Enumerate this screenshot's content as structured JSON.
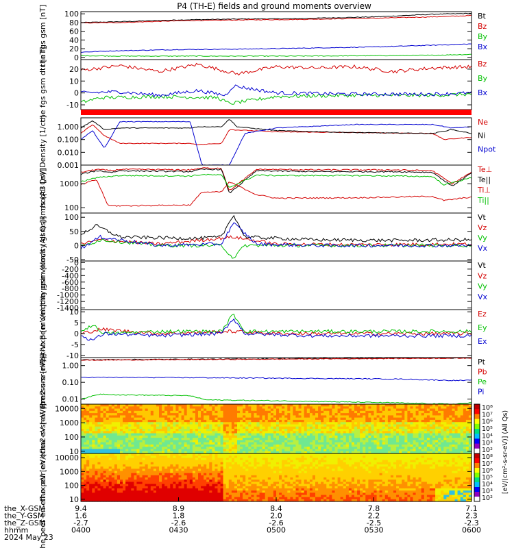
{
  "title": "P4 (TH-E) fields and ground moments overview",
  "chart_data": [
    {
      "type": "line",
      "ylabel": "the fgs gsm [nT]",
      "ylim": [
        -5,
        105
      ],
      "yticks": [
        "0",
        "20",
        "40",
        "60",
        "80",
        "100"
      ],
      "legend": [
        {
          "name": "Bt",
          "color": "#000000"
        },
        {
          "name": "Bz",
          "color": "#d40000"
        },
        {
          "name": "By",
          "color": "#00c000"
        },
        {
          "name": "Bx",
          "color": "#0000d0"
        }
      ],
      "series": [
        {
          "name": "Bt",
          "x": [
            0,
            0.1,
            0.25,
            0.4,
            0.55,
            0.75,
            0.9,
            1
          ],
          "values": [
            80,
            82,
            86,
            88,
            89,
            93,
            99,
            101
          ]
        },
        {
          "name": "Bz",
          "x": [
            0,
            0.1,
            0.25,
            0.4,
            0.55,
            0.75,
            0.9,
            1
          ],
          "values": [
            79,
            80,
            84,
            86,
            87,
            90,
            93,
            96
          ]
        },
        {
          "name": "By",
          "x": [
            0,
            0.1,
            0.25,
            0.4,
            0.55,
            0.75,
            0.9,
            1
          ],
          "values": [
            4,
            3,
            3,
            3,
            3,
            4,
            5,
            7
          ]
        },
        {
          "name": "Bx",
          "x": [
            0,
            0.08,
            0.25,
            0.4,
            0.55,
            0.75,
            0.9,
            1
          ],
          "values": [
            12,
            15,
            18,
            19,
            21,
            24,
            28,
            31
          ]
        }
      ]
    },
    {
      "type": "line",
      "ylabel": "the fgs gsm dtr [nT]",
      "ylim": [
        -14,
        28
      ],
      "yticks": [
        "-10",
        "0",
        "10",
        "20"
      ],
      "legend": [
        {
          "name": "Bz",
          "color": "#d40000"
        },
        {
          "name": "By",
          "color": "#00c000"
        },
        {
          "name": "Bx",
          "color": "#0000d0"
        }
      ],
      "series": [
        {
          "name": "Bz",
          "x": [
            0,
            0.1,
            0.2,
            0.3,
            0.4,
            0.5,
            0.6,
            0.7,
            0.8,
            0.9,
            1
          ],
          "values": [
            19,
            23,
            18,
            24,
            16,
            22,
            21,
            22,
            18,
            21,
            22
          ]
        },
        {
          "name": "By",
          "x": [
            0,
            0.05,
            0.2,
            0.35,
            0.38,
            0.5,
            0.7,
            0.9,
            1
          ],
          "values": [
            -8,
            -4,
            -3,
            -4,
            -9,
            -3,
            -2,
            -2,
            -1
          ]
        },
        {
          "name": "Bx",
          "x": [
            0,
            0.1,
            0.2,
            0.3,
            0.37,
            0.39,
            0.5,
            0.7,
            0.9,
            1
          ],
          "values": [
            0,
            1,
            -2,
            2,
            -2,
            6,
            0,
            -1,
            -1,
            0
          ]
        }
      ]
    },
    {
      "type": "line",
      "ylabel": "Density [1/cc]",
      "yscale": "log",
      "ylim": [
        0.001,
        5
      ],
      "yticks": [
        "0.001",
        "0.010",
        "0.100",
        "1.000"
      ],
      "legend": [
        {
          "name": "Ne",
          "color": "#d40000"
        },
        {
          "name": "Ni",
          "color": "#000000"
        },
        {
          "name": "Npot",
          "color": "#0000d0"
        }
      ],
      "series": [
        {
          "name": "Ne",
          "x": [
            0,
            0.03,
            0.06,
            0.1,
            0.28,
            0.3,
            0.36,
            0.38,
            0.5,
            0.7,
            0.9,
            0.93,
            1
          ],
          "values": [
            0.3,
            1.5,
            0.2,
            0.05,
            0.05,
            0.04,
            0.05,
            0.6,
            0.4,
            0.35,
            0.3,
            0.1,
            0.15
          ]
        },
        {
          "name": "Ni",
          "x": [
            0,
            0.03,
            0.06,
            0.1,
            0.28,
            0.3,
            0.36,
            0.38,
            0.4,
            0.5,
            0.7,
            0.9,
            0.95,
            1
          ],
          "values": [
            0.8,
            3,
            0.6,
            0.8,
            0.8,
            1,
            1,
            4,
            1,
            0.5,
            0.35,
            0.3,
            0.6,
            0.3
          ]
        },
        {
          "name": "Npot",
          "x": [
            0,
            0.03,
            0.06,
            0.1,
            0.28,
            0.31,
            0.38,
            0.42,
            0.5,
            0.7,
            0.9,
            0.95,
            1
          ],
          "values": [
            0.1,
            0.5,
            0.02,
            2.5,
            2.5,
            0.001,
            0.001,
            0.3,
            0.8,
            1.5,
            1.5,
            0.8,
            1
          ]
        }
      ]
    },
    {
      "type": "line",
      "ylabel": "moqt3 [eV]",
      "yscale": "log",
      "ylim": [
        60,
        6000
      ],
      "yticks": [
        "100",
        "1000"
      ],
      "legend": [
        {
          "name": "Te⊥",
          "color": "#d40000"
        },
        {
          "name": "Te||",
          "color": "#000000"
        },
        {
          "name": "Ti⊥",
          "color": "#d40000"
        },
        {
          "name": "Ti||",
          "color": "#00c000"
        }
      ],
      "series": [
        {
          "name": "Te⊥",
          "x": [
            0,
            0.04,
            0.08,
            0.1,
            0.28,
            0.31,
            0.36,
            0.38,
            0.45,
            0.6,
            0.8,
            0.9,
            0.95,
            1
          ],
          "values": [
            3000,
            4000,
            3500,
            4000,
            3800,
            4500,
            4500,
            500,
            4000,
            3800,
            3800,
            3500,
            1000,
            3000
          ]
        },
        {
          "name": "Te||",
          "x": [
            0,
            0.04,
            0.08,
            0.1,
            0.28,
            0.31,
            0.36,
            0.38,
            0.45,
            0.6,
            0.8,
            0.9,
            0.95,
            1
          ],
          "values": [
            2500,
            3500,
            3000,
            3500,
            3200,
            4000,
            4000,
            400,
            3500,
            3200,
            3200,
            3000,
            800,
            2800
          ]
        },
        {
          "name": "Ti⊥",
          "x": [
            0,
            0.04,
            0.07,
            0.1,
            0.28,
            0.31,
            0.36,
            0.38,
            0.45,
            0.5,
            0.7,
            0.9,
            0.93,
            1
          ],
          "values": [
            900,
            1500,
            120,
            120,
            130,
            450,
            450,
            1200,
            350,
            250,
            260,
            300,
            200,
            280
          ]
        },
        {
          "name": "Ti||",
          "x": [
            0,
            0.04,
            0.07,
            0.1,
            0.28,
            0.31,
            0.36,
            0.38,
            0.45,
            0.5,
            0.7,
            0.9,
            0.93,
            1
          ],
          "values": [
            1200,
            1800,
            2000,
            2200,
            2100,
            2400,
            2300,
            700,
            2300,
            2200,
            2200,
            2000,
            900,
            1800
          ]
        }
      ]
    },
    {
      "type": "line",
      "ylabel": "the peir velocity gsm [km/s (All Qs)]",
      "ylim": [
        -55,
        115
      ],
      "yticks": [
        "-50",
        "0",
        "50",
        "100"
      ],
      "legend": [
        {
          "name": "Vt",
          "color": "#000000"
        },
        {
          "name": "Vz",
          "color": "#d40000"
        },
        {
          "name": "Vy",
          "color": "#00c000"
        },
        {
          "name": "Vx",
          "color": "#0000d0"
        }
      ],
      "series": [
        {
          "name": "Vt",
          "x": [
            0,
            0.04,
            0.1,
            0.3,
            0.36,
            0.39,
            0.42,
            0.6,
            0.8,
            1
          ],
          "values": [
            40,
            70,
            30,
            25,
            30,
            110,
            30,
            20,
            18,
            20
          ]
        },
        {
          "name": "Vz",
          "x": [
            0,
            0.05,
            0.2,
            0.39,
            0.5,
            0.7,
            1
          ],
          "values": [
            5,
            20,
            5,
            30,
            5,
            3,
            5
          ]
        },
        {
          "name": "Vy",
          "x": [
            0,
            0.05,
            0.2,
            0.36,
            0.39,
            0.42,
            0.6,
            1
          ],
          "values": [
            -5,
            20,
            0,
            0,
            -45,
            0,
            0,
            0
          ]
        },
        {
          "name": "Vx",
          "x": [
            0,
            0.05,
            0.2,
            0.36,
            0.39,
            0.45,
            0.6,
            1
          ],
          "values": [
            -10,
            30,
            0,
            5,
            80,
            5,
            0,
            0
          ]
        }
      ]
    },
    {
      "type": "line",
      "ylabel": "the peer velocity gsm [km/s (All Qs)]",
      "ylim": [
        -1450,
        50
      ],
      "yticks": [
        "-1400",
        "-1200",
        "-1000",
        "-800",
        "-600",
        "-400",
        "-200",
        "0"
      ],
      "legend": [
        {
          "name": "Vt",
          "color": "#000000"
        },
        {
          "name": "Vz",
          "color": "#d40000"
        },
        {
          "name": "Vy",
          "color": "#00c000"
        },
        {
          "name": "Vx",
          "color": "#0000d0"
        }
      ],
      "series": []
    },
    {
      "type": "line",
      "ylabel": "E=-VxB [mV/m]",
      "ylim": [
        -11,
        11
      ],
      "yticks": [
        "-10",
        "-5",
        "0",
        "5",
        "10"
      ],
      "legend": [
        {
          "name": "Ez",
          "color": "#d40000"
        },
        {
          "name": "Ey",
          "color": "#00c000"
        },
        {
          "name": "Ex",
          "color": "#0000d0"
        }
      ],
      "series": [
        {
          "name": "Ez",
          "x": [
            0,
            0.05,
            0.2,
            0.39,
            0.5,
            1
          ],
          "values": [
            0,
            2,
            0,
            1,
            0,
            0
          ]
        },
        {
          "name": "Ey",
          "x": [
            0,
            0.03,
            0.06,
            0.2,
            0.36,
            0.39,
            0.42,
            0.6,
            1
          ],
          "values": [
            1,
            4,
            0,
            1,
            1,
            9,
            1,
            1,
            1
          ]
        },
        {
          "name": "Ex",
          "x": [
            0,
            0.03,
            0.06,
            0.2,
            0.36,
            0.39,
            0.42,
            0.6,
            1
          ],
          "values": [
            -1,
            -3,
            0,
            -1,
            0,
            7,
            0,
            -1,
            -1
          ]
        }
      ]
    },
    {
      "type": "line",
      "ylabel": "Pressure [nPa]",
      "yscale": "log",
      "ylim": [
        0.005,
        3
      ],
      "yticks": [
        "0.01",
        "0.10",
        "1.00"
      ],
      "legend": [
        {
          "name": "Pt",
          "color": "#000000"
        },
        {
          "name": "Pb",
          "color": "#d40000"
        },
        {
          "name": "Pe",
          "color": "#00c000"
        },
        {
          "name": "Pi",
          "color": "#0000d0"
        }
      ],
      "series": [
        {
          "name": "Pt",
          "x": [
            0,
            0.3,
            0.6,
            1
          ],
          "values": [
            2.2,
            2.4,
            2.6,
            2.9
          ]
        },
        {
          "name": "Pb",
          "x": [
            0,
            0.3,
            0.6,
            1
          ],
          "values": [
            2.1,
            2.3,
            2.5,
            2.8
          ]
        },
        {
          "name": "Pe",
          "x": [
            0,
            0.05,
            0.1,
            0.28,
            0.32,
            0.5,
            0.8,
            0.95,
            1
          ],
          "values": [
            0.01,
            0.02,
            0.018,
            0.016,
            0.009,
            0.008,
            0.006,
            0.005,
            0.006
          ]
        },
        {
          "name": "Pi",
          "x": [
            0,
            0.3,
            0.6,
            0.8,
            0.95,
            1
          ],
          "values": [
            0.2,
            0.19,
            0.17,
            0.16,
            0.13,
            0.13
          ]
        }
      ]
    },
    {
      "type": "heatmap",
      "ylabel": "the peir en eflux eV [eV/(cm2-s-sr-eV)]",
      "yscale": "log",
      "ylim": [
        7,
        20000
      ],
      "yticks": [
        "10",
        "100",
        "1000",
        "10000"
      ]
    },
    {
      "type": "heatmap",
      "ylabel": "the peer en eflux eV [eV/(cm2-s-sr-eV)]",
      "yscale": "log",
      "ylim": [
        7,
        20000
      ],
      "yticks": [
        "10",
        "100",
        "1000",
        "10000"
      ]
    }
  ],
  "colorbar": {
    "label": "[eV/(cm²-s-sr-eV)] (All Qs)",
    "ticks": [
      "10²",
      "10³",
      "10⁴",
      "10⁵",
      "10⁶",
      "10⁷",
      "10⁸"
    ],
    "colors": [
      "#ffffff",
      "#9000c0",
      "#0000ff",
      "#00c0ff",
      "#00e080",
      "#80ff00",
      "#ffff00",
      "#ff8000",
      "#ff0000",
      "#c00000"
    ]
  },
  "time_axis": {
    "rows": [
      {
        "label": "the_X-GSM",
        "values": [
          "9.4",
          "8.9",
          "8.4",
          "7.8",
          "7.1"
        ]
      },
      {
        "label": "the_Y-GSM",
        "values": [
          "1.6",
          "1.8",
          "2.0",
          "2.2",
          "2.3"
        ]
      },
      {
        "label": "the_Z-GSM",
        "values": [
          "-2.7",
          "-2.6",
          "-2.6",
          "-2.5",
          "-2.3"
        ]
      },
      {
        "label": "hhmm",
        "values": [
          "0400",
          "0430",
          "0500",
          "0530",
          "0600"
        ]
      }
    ],
    "date": "2024 May 23"
  }
}
